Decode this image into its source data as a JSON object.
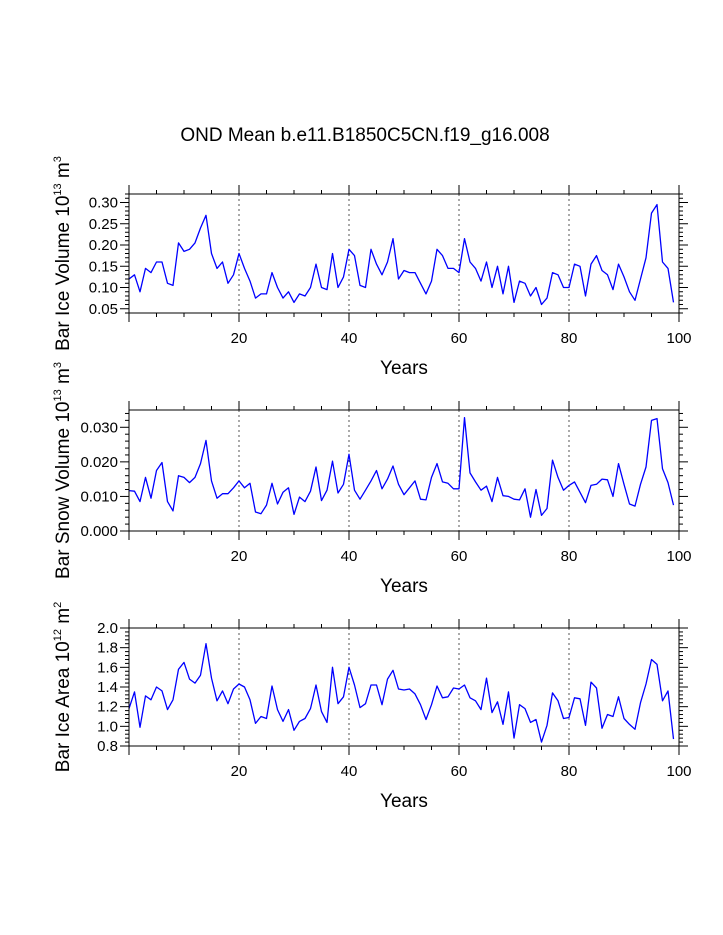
{
  "chart_data": {
    "title": "OND Mean b.e11.B1850C5CN.f19_g16.008",
    "panels": [
      {
        "type": "line",
        "ylabel": "Bar Ice Volume 10",
        "ylabel_exp": "13",
        "ylabel_unit": " m",
        "ylabel_unit_exp": "3",
        "xlabel": "Years",
        "xlim": [
          0,
          100
        ],
        "ylim": [
          0.04,
          0.32
        ],
        "xticks": [
          20,
          40,
          60,
          80,
          100
        ],
        "yticks": [
          0.05,
          0.1,
          0.15,
          0.2,
          0.25,
          0.3
        ],
        "ytick_labels": [
          "0.05",
          "0.10",
          "0.15",
          "0.20",
          "0.25",
          "0.30"
        ],
        "grid_x": [
          20,
          40,
          60,
          80
        ],
        "color": "#0000ff",
        "x_start": 0,
        "values": [
          0.12,
          0.13,
          0.09,
          0.145,
          0.135,
          0.16,
          0.16,
          0.11,
          0.105,
          0.205,
          0.185,
          0.19,
          0.205,
          0.24,
          0.27,
          0.18,
          0.145,
          0.16,
          0.11,
          0.13,
          0.18,
          0.145,
          0.115,
          0.075,
          0.085,
          0.085,
          0.135,
          0.1,
          0.075,
          0.09,
          0.065,
          0.085,
          0.08,
          0.1,
          0.155,
          0.1,
          0.095,
          0.18,
          0.1,
          0.125,
          0.19,
          0.175,
          0.105,
          0.1,
          0.19,
          0.155,
          0.13,
          0.16,
          0.215,
          0.12,
          0.14,
          0.135,
          0.135,
          0.11,
          0.085,
          0.115,
          0.19,
          0.175,
          0.145,
          0.145,
          0.135,
          0.215,
          0.16,
          0.145,
          0.115,
          0.16,
          0.1,
          0.15,
          0.085,
          0.15,
          0.065,
          0.115,
          0.11,
          0.08,
          0.1,
          0.06,
          0.075,
          0.135,
          0.13,
          0.1,
          0.1,
          0.155,
          0.15,
          0.08,
          0.155,
          0.175,
          0.14,
          0.13,
          0.095,
          0.155,
          0.125,
          0.09,
          0.07,
          0.12,
          0.17,
          0.275,
          0.295,
          0.16,
          0.145,
          0.065
        ]
      },
      {
        "type": "line",
        "ylabel": "Bar Snow Volume 10",
        "ylabel_exp": "13",
        "ylabel_unit": " m",
        "ylabel_unit_exp": "3",
        "xlabel": "Years",
        "xlim": [
          0,
          100
        ],
        "ylim": [
          0.0,
          0.035
        ],
        "xticks": [
          20,
          40,
          60,
          80,
          100
        ],
        "yticks": [
          0.0,
          0.01,
          0.02,
          0.03
        ],
        "ytick_labels": [
          "0.000",
          "0.010",
          "0.020",
          "0.030"
        ],
        "grid_x": [
          20,
          40,
          60,
          80
        ],
        "color": "#0000ff",
        "x_start": 0,
        "values": [
          0.0117,
          0.0115,
          0.0085,
          0.0155,
          0.0095,
          0.0175,
          0.0198,
          0.0085,
          0.0058,
          0.016,
          0.0155,
          0.014,
          0.0155,
          0.0195,
          0.0262,
          0.0145,
          0.0095,
          0.0108,
          0.0108,
          0.0125,
          0.0145,
          0.0125,
          0.0138,
          0.0055,
          0.005,
          0.0075,
          0.0138,
          0.0078,
          0.0112,
          0.0125,
          0.0048,
          0.0098,
          0.0085,
          0.0115,
          0.0185,
          0.0088,
          0.0118,
          0.0202,
          0.011,
          0.0135,
          0.0222,
          0.0118,
          0.0092,
          0.0118,
          0.0145,
          0.0175,
          0.0122,
          0.015,
          0.0188,
          0.0135,
          0.0105,
          0.0125,
          0.0145,
          0.0092,
          0.009,
          0.0155,
          0.0195,
          0.0142,
          0.0138,
          0.0122,
          0.0122,
          0.0328,
          0.0168,
          0.0142,
          0.0118,
          0.013,
          0.0085,
          0.0155,
          0.0102,
          0.01,
          0.0092,
          0.009,
          0.0122,
          0.004,
          0.012,
          0.0045,
          0.0065,
          0.0205,
          0.0155,
          0.0118,
          0.0132,
          0.0142,
          0.0112,
          0.0082,
          0.0132,
          0.0135,
          0.015,
          0.0148,
          0.01,
          0.0195,
          0.0135,
          0.0078,
          0.0072,
          0.0135,
          0.0185,
          0.032,
          0.0325,
          0.018,
          0.014,
          0.0075
        ]
      },
      {
        "type": "line",
        "ylabel": "Bar Ice Area 10",
        "ylabel_exp": "12",
        "ylabel_unit": " m",
        "ylabel_unit_exp": "2",
        "xlabel": "Years",
        "xlim": [
          0,
          100
        ],
        "ylim": [
          0.8,
          2.0
        ],
        "xticks": [
          20,
          40,
          60,
          80,
          100
        ],
        "yticks": [
          0.8,
          1.0,
          1.2,
          1.4,
          1.6,
          1.8,
          2.0
        ],
        "ytick_labels": [
          "0.8",
          "1.0",
          "1.2",
          "1.4",
          "1.6",
          "1.8",
          "2.0"
        ],
        "grid_x": [
          20,
          40,
          60,
          80
        ],
        "color": "#0000ff",
        "x_start": 0,
        "values": [
          1.18,
          1.35,
          0.99,
          1.31,
          1.27,
          1.4,
          1.36,
          1.17,
          1.27,
          1.58,
          1.65,
          1.48,
          1.44,
          1.52,
          1.84,
          1.49,
          1.26,
          1.36,
          1.23,
          1.38,
          1.43,
          1.4,
          1.27,
          1.03,
          1.1,
          1.08,
          1.41,
          1.17,
          1.05,
          1.17,
          0.96,
          1.05,
          1.08,
          1.18,
          1.42,
          1.15,
          1.04,
          1.6,
          1.23,
          1.3,
          1.6,
          1.42,
          1.19,
          1.23,
          1.42,
          1.42,
          1.22,
          1.48,
          1.57,
          1.38,
          1.37,
          1.38,
          1.33,
          1.22,
          1.07,
          1.22,
          1.41,
          1.29,
          1.3,
          1.39,
          1.38,
          1.42,
          1.29,
          1.26,
          1.17,
          1.49,
          1.14,
          1.25,
          1.02,
          1.35,
          0.88,
          1.22,
          1.18,
          1.04,
          1.07,
          0.84,
          1.01,
          1.34,
          1.26,
          1.08,
          1.09,
          1.29,
          1.28,
          1.01,
          1.45,
          1.39,
          0.98,
          1.12,
          1.1,
          1.3,
          1.08,
          1.02,
          0.97,
          1.24,
          1.43,
          1.68,
          1.63,
          1.26,
          1.36,
          0.87
        ]
      }
    ]
  }
}
